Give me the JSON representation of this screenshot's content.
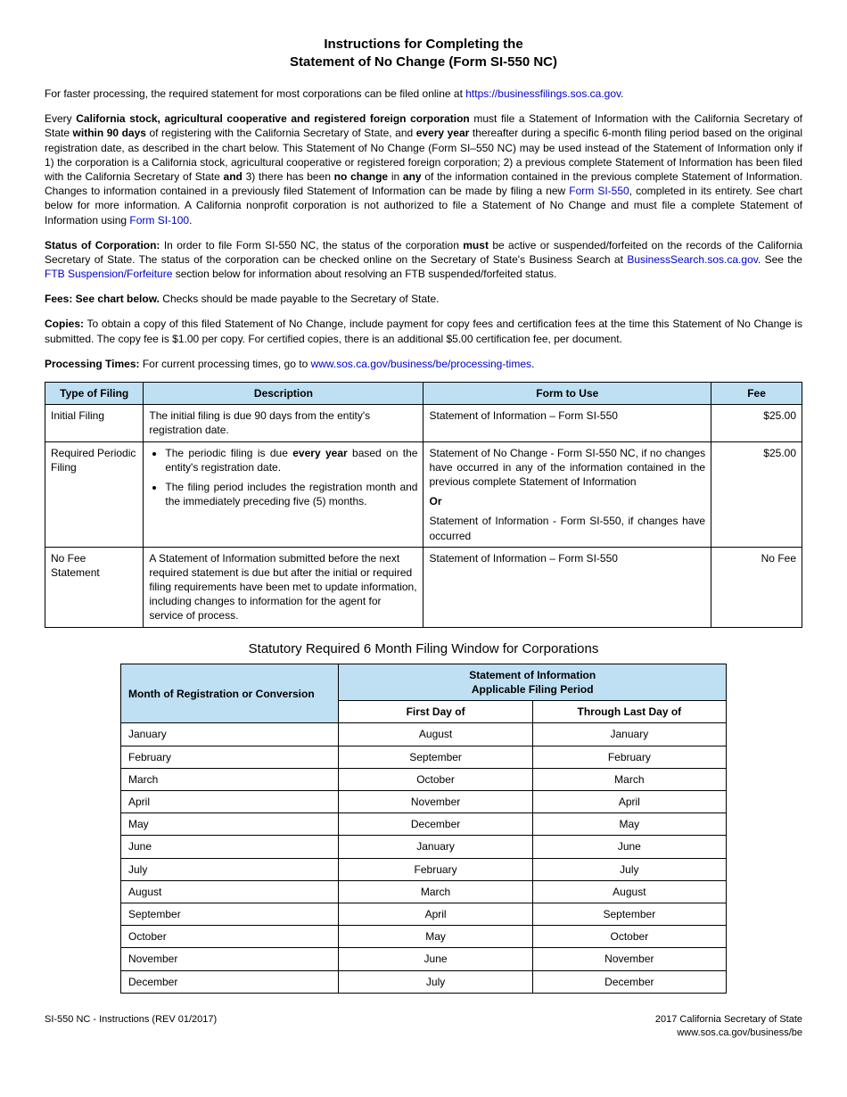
{
  "title_line1": "Instructions for Completing the",
  "title_line2": "Statement of No Change (Form SI-550 NC)",
  "intro_para_pre": "For faster processing, the required statement for most corporations can be filed online at ",
  "intro_link": "https://businessfilings.sos.ca.gov",
  "intro_para_post": ".",
  "p2_a": "Every ",
  "p2_b": "California stock, agricultural cooperative and registered foreign corporation",
  "p2_c": " must file a Statement of Information with the California Secretary of State ",
  "p2_d": "within 90 days",
  "p2_e": " of registering with the California Secretary of State, and ",
  "p2_f": "every year",
  "p2_g": " thereafter during a specific 6-month filing period based on the original registration date, as described in the chart below.  This Statement of No Change (Form SI–550 NC) may be used instead of the Statement of Information only if 1) the corporation is a California stock, agricultural cooperative or registered foreign corporation; 2) a previous complete Statement of Information has been filed with the California Secretary of State ",
  "p2_h": "and",
  "p2_i": " 3) there has been ",
  "p2_j": "no change",
  "p2_k": " in ",
  "p2_l": "any",
  "p2_m": " of the information contained in the previous complete Statement of Information.  Changes to information contained in a previously filed Statement of Information can be made by filing a new ",
  "p2_link1": "Form SI-550",
  "p2_n": ", completed in its entirety.  See chart below for more information.  A California nonprofit corporation is not authorized to file a Statement of No Change and must file a complete Statement of Information using ",
  "p2_link2": "Form SI-100",
  "p2_o": ".",
  "p3_a": "Status of Corporation:",
  "p3_b": "  In order to file Form SI-550 NC, the status of the corporation ",
  "p3_c": "must",
  "p3_d": " be active or suspended/forfeited on the records of the California Secretary of State.  The status of the corporation can be checked online on the Secretary of State's Business Search at ",
  "p3_link1": "BusinessSearch.sos.ca.gov",
  "p3_e": ".  See the ",
  "p3_link2": "FTB Suspension/Forfeiture",
  "p3_f": " section below for information about resolving an FTB suspended/forfeited status.",
  "p4_a": "Fees:  See chart below.",
  "p4_b": "  Checks should be made payable to the Secretary of State.",
  "p5_a": "Copies:",
  "p5_b": "  To obtain a copy of this filed Statement of No Change, include payment for copy fees and certification fees at the time this Statement of No Change is submitted.  The copy fee is $1.00 per copy.  For certified copies, there is an additional $5.00 certification fee, per document.",
  "p6_a": "Processing Times:",
  "p6_b": "  For current processing times, go to ",
  "p6_link": "www.sos.ca.gov/business/be/processing-times",
  "p6_c": ".",
  "filing_headers": [
    "Type of Filing",
    "Description",
    "Form to Use",
    "Fee"
  ],
  "filing_rows": [
    {
      "type": "Initial Filing",
      "desc": "The initial filing is due 90 days from the entity's registration date.",
      "form": "Statement of Information – Form SI-550",
      "fee": "$25.00"
    },
    {
      "type": "Required Periodic Filing",
      "desc_bullets": [
        {
          "pre": "The periodic filing is due ",
          "bold": "every year",
          "post": " based on the entity's registration date."
        },
        {
          "pre": "The filing period includes the registration month and the immediately preceding five (5) months.",
          "bold": "",
          "post": ""
        }
      ],
      "form_a": "Statement of No Change - Form SI-550 NC, if no changes have occurred in any of the information contained in the previous complete Statement of Information",
      "form_or": "Or",
      "form_b": "Statement of Information - Form SI-550, if changes have occurred",
      "fee": "$25.00"
    },
    {
      "type": "No Fee Statement",
      "desc": "A Statement of Information submitted before the next required statement is due but after the initial or required filing requirements have been met to update information, including changes to information for the agent for service of process.",
      "form": "Statement of Information – Form SI-550",
      "fee": "No Fee"
    }
  ],
  "window_title": "Statutory Required 6 Month Filing Window for Corporations",
  "window_header_left": "Month of Registration or Conversion",
  "window_header_right1": "Statement of Information",
  "window_header_right2": "Applicable Filing Period",
  "window_sub1": "First Day of",
  "window_sub2": "Through Last Day of",
  "window_rows": [
    [
      "January",
      "August",
      "January"
    ],
    [
      "February",
      "September",
      "February"
    ],
    [
      "March",
      "October",
      "March"
    ],
    [
      "April",
      "November",
      "April"
    ],
    [
      "May",
      "December",
      "May"
    ],
    [
      "June",
      "January",
      "June"
    ],
    [
      "July",
      "February",
      "July"
    ],
    [
      "August",
      "March",
      "August"
    ],
    [
      "September",
      "April",
      "September"
    ],
    [
      "October",
      "May",
      "October"
    ],
    [
      "November",
      "June",
      "November"
    ],
    [
      "December",
      "July",
      "December"
    ]
  ],
  "footer_left": "SI-550 NC - Instructions (REV 01/2017)",
  "footer_right1": "2017 California Secretary of State",
  "footer_right2": "www.sos.ca.gov/business/be",
  "colors": {
    "header_bg": "#bfdff3",
    "link": "#0000cc",
    "border": "#000000"
  }
}
